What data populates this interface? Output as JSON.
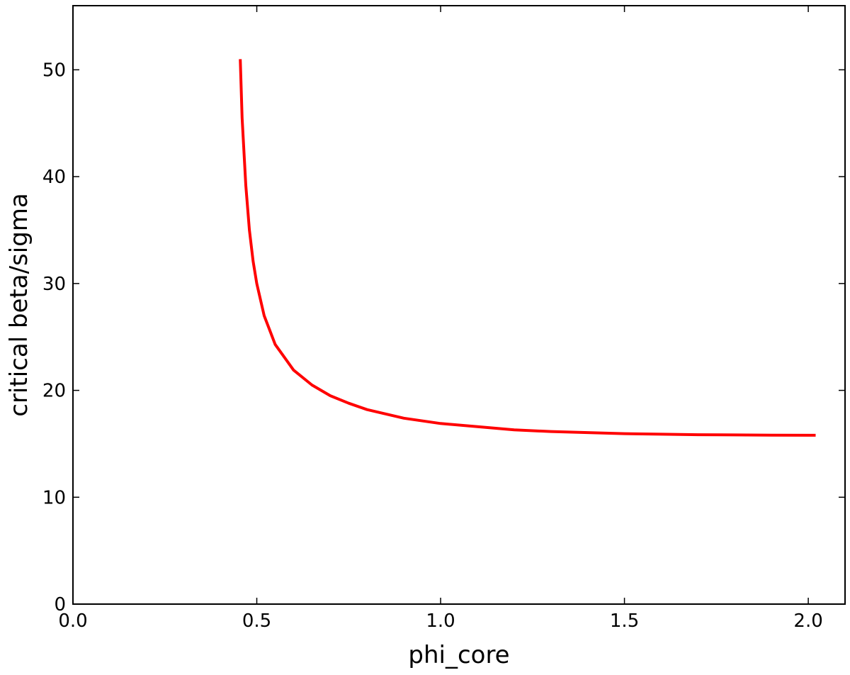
{
  "chart_data": {
    "type": "line",
    "title": "",
    "xlabel": "phi_core",
    "ylabel": "critical beta/sigma",
    "xlim": [
      0.0,
      2.1
    ],
    "ylim": [
      0,
      56
    ],
    "xticks": [
      0.0,
      0.5,
      1.0,
      1.5,
      2.0
    ],
    "xtick_labels": [
      "0.0",
      "0.5",
      "1.0",
      "1.5",
      "2.0"
    ],
    "yticks": [
      0,
      10,
      20,
      30,
      40,
      50
    ],
    "ytick_labels": [
      "0",
      "10",
      "20",
      "30",
      "40",
      "50"
    ],
    "grid": false,
    "legend": "none",
    "series": [
      {
        "color": "#ff0000",
        "x": [
          0.455,
          0.46,
          0.47,
          0.48,
          0.49,
          0.5,
          0.52,
          0.55,
          0.6,
          0.65,
          0.7,
          0.75,
          0.8,
          0.9,
          1.0,
          1.1,
          1.2,
          1.3,
          1.4,
          1.5,
          1.6,
          1.7,
          1.8,
          1.9,
          2.02
        ],
        "y": [
          51.0,
          45.5,
          39.2,
          35.0,
          32.1,
          30.0,
          27.0,
          24.3,
          21.9,
          20.5,
          19.5,
          18.8,
          18.2,
          17.4,
          16.9,
          16.6,
          16.3,
          16.15,
          16.05,
          15.95,
          15.9,
          15.85,
          15.83,
          15.81,
          15.8
        ]
      }
    ]
  }
}
